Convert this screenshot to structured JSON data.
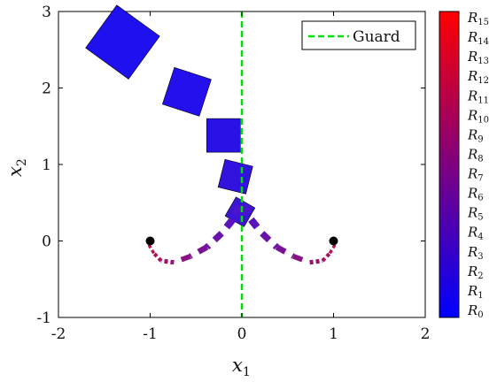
{
  "chart_data": {
    "type": "scatter",
    "title": "",
    "xlabel": "x",
    "xlabel_sub": "1",
    "ylabel": "x",
    "ylabel_sub": "2",
    "xlim": [
      -2,
      2
    ],
    "ylim": [
      -1,
      3
    ],
    "xticks": [
      -2,
      -1,
      0,
      1,
      2
    ],
    "xtick_labels": [
      "-2",
      "-1",
      "0",
      "1",
      "2"
    ],
    "yticks": [
      -1,
      0,
      1,
      2,
      3
    ],
    "ytick_labels": [
      "-1",
      "0",
      "1",
      "2",
      "3"
    ],
    "grid": false,
    "legend": {
      "position": "top-right",
      "entries": [
        {
          "label": "Guard",
          "color": "#00e000",
          "style": "dashed"
        }
      ]
    },
    "guard": {
      "x": 0,
      "y_range": [
        -1,
        3
      ]
    },
    "initial_points": [
      {
        "x": -1,
        "y": 0
      },
      {
        "x": 1,
        "y": 0
      }
    ],
    "reach_sets": [
      {
        "center": [
          -1.3,
          2.6
        ],
        "half_size": 0.315,
        "angle_deg": 36,
        "color": "#1f10f0"
      },
      {
        "center": [
          -0.6,
          1.95
        ],
        "half_size": 0.23,
        "angle_deg": 18,
        "color": "#2410ec"
      },
      {
        "center": [
          -0.2,
          1.38
        ],
        "half_size": 0.2,
        "angle_deg": 0,
        "color": "#2812e6"
      },
      {
        "center": [
          -0.07,
          0.84
        ],
        "half_size": 0.17,
        "angle_deg": 14,
        "color": "#3212de"
      },
      {
        "center": [
          -0.02,
          0.38
        ],
        "half_size": 0.13,
        "angle_deg": 30,
        "color": "#3c14d6"
      }
    ],
    "trajectories": [
      {
        "points": [
          [
            -0.02,
            0.46
          ],
          [
            -0.1,
            0.28
          ],
          [
            -0.22,
            0.1
          ],
          [
            -0.38,
            -0.08
          ],
          [
            -0.56,
            -0.2
          ],
          [
            -0.74,
            -0.28
          ],
          [
            -0.88,
            -0.26
          ],
          [
            -0.96,
            -0.16
          ],
          [
            -1.02,
            -0.04
          ],
          [
            -1.0,
            0.0
          ]
        ]
      },
      {
        "points": [
          [
            0.02,
            0.46
          ],
          [
            0.1,
            0.28
          ],
          [
            0.22,
            0.1
          ],
          [
            0.38,
            -0.08
          ],
          [
            0.56,
            -0.2
          ],
          [
            0.74,
            -0.28
          ],
          [
            0.88,
            -0.26
          ],
          [
            0.96,
            -0.16
          ],
          [
            1.02,
            -0.04
          ],
          [
            1.0,
            0.0
          ]
        ]
      }
    ],
    "colorbar": {
      "labels": [
        "R",
        "R",
        "R",
        "R",
        "R",
        "R",
        "R",
        "R",
        "R",
        "R",
        "R",
        "R",
        "R",
        "R",
        "R",
        "R"
      ],
      "subscripts": [
        "0",
        "1",
        "2",
        "3",
        "4",
        "5",
        "6",
        "7",
        "8",
        "9",
        "10",
        "11",
        "12",
        "13",
        "14",
        "15"
      ],
      "color_low": "#0000ff",
      "color_high": "#ff0000"
    }
  }
}
